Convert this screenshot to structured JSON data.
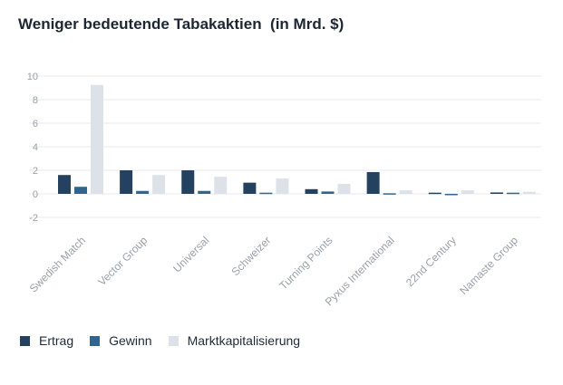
{
  "title": "Weniger bedeutende Tabakaktien  (in Mrd. $)",
  "colors": {
    "ertrag": "#24415f",
    "gewinn": "#2f6691",
    "markt": "#dde2e9",
    "grid": "#e6e8ec",
    "tick": "#9aa1a9"
  },
  "legend": [
    {
      "label": "Ertrag",
      "color": "#24415f"
    },
    {
      "label": "Gewinn",
      "color": "#2f6691"
    },
    {
      "label": "Marktkapitalisierung",
      "color": "#dde2e9"
    }
  ],
  "chart_data": {
    "type": "bar",
    "title": "Weniger bedeutende Tabakaktien  (in Mrd. $)",
    "xlabel": "",
    "ylabel": "",
    "ylim": [
      -2,
      10
    ],
    "yticks": [
      10,
      8,
      6,
      4,
      2,
      0,
      -2
    ],
    "grid": true,
    "legend_position": "bottom-left",
    "categories": [
      "Swedish Match",
      "Vector Group",
      "Universal",
      "Schweizer",
      "Turning Points",
      "Pyxus International",
      "22nd Century",
      "Namaste Group"
    ],
    "series": [
      {
        "name": "Ertrag",
        "values": [
          1.6,
          2.0,
          2.0,
          0.95,
          0.4,
          1.85,
          0.1,
          0.12
        ]
      },
      {
        "name": "Gewinn",
        "values": [
          0.6,
          0.25,
          0.25,
          0.1,
          0.2,
          0.05,
          -0.05,
          0.1
        ]
      },
      {
        "name": "Marktkapitalisierung",
        "values": [
          9.25,
          1.6,
          1.45,
          1.3,
          0.85,
          0.3,
          0.3,
          0.18
        ]
      }
    ]
  }
}
